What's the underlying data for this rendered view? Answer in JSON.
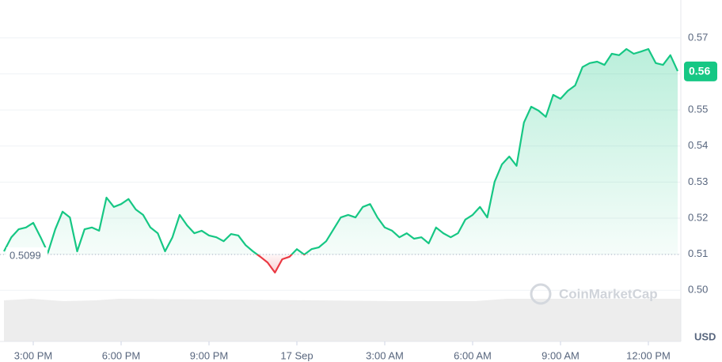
{
  "chart_data": {
    "type": "line",
    "values": [
      0.5108,
      0.5147,
      0.5169,
      0.5174,
      0.5187,
      0.5147,
      0.5104,
      0.5169,
      0.5218,
      0.5202,
      0.5108,
      0.5169,
      0.5174,
      0.5165,
      0.5257,
      0.5231,
      0.5239,
      0.5253,
      0.5224,
      0.5209,
      0.5174,
      0.5158,
      0.5108,
      0.5147,
      0.5209,
      0.518,
      0.5158,
      0.5165,
      0.5152,
      0.5147,
      0.5136,
      0.5156,
      0.5152,
      0.5125,
      0.5108,
      0.5093,
      0.5077,
      0.5049,
      0.5086,
      0.5093,
      0.5114,
      0.5099,
      0.5114,
      0.5119,
      0.5136,
      0.5169,
      0.5202,
      0.5209,
      0.5202,
      0.5231,
      0.5239,
      0.5202,
      0.5174,
      0.5165,
      0.5147,
      0.5158,
      0.5143,
      0.5147,
      0.513,
      0.5174,
      0.5158,
      0.5147,
      0.5158,
      0.5196,
      0.5209,
      0.5231,
      0.5202,
      0.5301,
      0.5349,
      0.5371,
      0.5345,
      0.5465,
      0.5509,
      0.5498,
      0.5481,
      0.5542,
      0.5531,
      0.5553,
      0.5568,
      0.5619,
      0.563,
      0.5634,
      0.5625,
      0.5656,
      0.5652,
      0.5669,
      0.5656,
      0.5662,
      0.5669,
      0.563,
      0.5625,
      0.5652,
      0.5608
    ],
    "xlim": [
      0,
      92
    ],
    "xticks": [
      {
        "value": 4,
        "label": "3:00 PM"
      },
      {
        "value": 16,
        "label": "6:00 PM"
      },
      {
        "value": 28,
        "label": "9:00 PM"
      },
      {
        "value": 40,
        "label": "17 Sep"
      },
      {
        "value": 52,
        "label": "3:00 AM"
      },
      {
        "value": 64,
        "label": "6:00 AM"
      },
      {
        "value": 76,
        "label": "9:00 AM"
      },
      {
        "value": 88,
        "label": "12:00 PM"
      }
    ],
    "ylim": [
      0.4858,
      0.5794
    ],
    "yticks": [
      {
        "value": 0.5,
        "label": "0.50"
      },
      0.51,
      0.52,
      0.53,
      0.54,
      0.55,
      0.56,
      0.57
    ],
    "baseline": 0.5099,
    "last_label": "0.56",
    "currency": "USD",
    "watermark": "CoinMarketCap",
    "up_color": "#16c784",
    "down_color": "#ea3943",
    "grid": true
  }
}
